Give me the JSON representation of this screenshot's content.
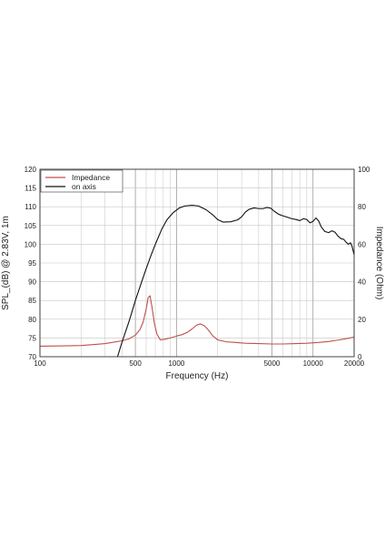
{
  "chart_data": {
    "type": "line",
    "x_scale": "log",
    "xlabel": "Frequency (Hz)",
    "ylabel": "SPL_(dB) @ 2.83V, 1m",
    "y2label": "Impedance (Ohm)",
    "xlim": [
      100,
      20000
    ],
    "ylim": [
      70,
      120
    ],
    "y2lim": [
      0,
      100
    ],
    "x_ticks": [
      100,
      500,
      1000,
      5000,
      10000,
      20000
    ],
    "x_tick_labels": [
      "100",
      "500",
      "1000",
      "5000",
      "10000",
      "20000"
    ],
    "y_ticks": [
      70,
      75,
      80,
      85,
      90,
      95,
      100,
      105,
      110,
      115,
      120
    ],
    "y_tick_labels": [
      "70",
      "75",
      "80",
      "85",
      "90",
      "95",
      "100",
      "105",
      "110",
      "115",
      "120"
    ],
    "y2_ticks": [
      0,
      20,
      40,
      60,
      80,
      100
    ],
    "y2_tick_labels": [
      "0",
      "20",
      "40",
      "60",
      "80",
      "100"
    ],
    "grid": true,
    "legend_position": "top-left",
    "series": [
      {
        "name": "Impedance",
        "axis": "right",
        "color": "#c0504d",
        "points": [
          [
            100,
            5.6
          ],
          [
            150,
            5.8
          ],
          [
            200,
            6.0
          ],
          [
            250,
            6.5
          ],
          [
            300,
            7.0
          ],
          [
            350,
            7.8
          ],
          [
            400,
            8.5
          ],
          [
            450,
            9.6
          ],
          [
            500,
            11.5
          ],
          [
            540,
            14.5
          ],
          [
            570,
            18.5
          ],
          [
            600,
            25.5
          ],
          [
            620,
            31.5
          ],
          [
            640,
            32.5
          ],
          [
            660,
            27.0
          ],
          [
            690,
            17.5
          ],
          [
            720,
            12.0
          ],
          [
            760,
            9.0
          ],
          [
            820,
            9.3
          ],
          [
            900,
            10.0
          ],
          [
            1000,
            11.0
          ],
          [
            1100,
            11.8
          ],
          [
            1200,
            13.0
          ],
          [
            1300,
            14.8
          ],
          [
            1400,
            16.8
          ],
          [
            1500,
            17.5
          ],
          [
            1600,
            16.5
          ],
          [
            1700,
            14.5
          ],
          [
            1850,
            11.0
          ],
          [
            2000,
            9.0
          ],
          [
            2300,
            8.0
          ],
          [
            2700,
            7.6
          ],
          [
            3200,
            7.2
          ],
          [
            4000,
            7.0
          ],
          [
            5000,
            6.8
          ],
          [
            6000,
            6.8
          ],
          [
            7500,
            7.0
          ],
          [
            9000,
            7.2
          ],
          [
            11000,
            7.6
          ],
          [
            13000,
            8.1
          ],
          [
            15000,
            8.8
          ],
          [
            17500,
            9.6
          ],
          [
            20000,
            10.5
          ]
        ]
      },
      {
        "name": "on axis",
        "axis": "left",
        "color": "#111111",
        "points": [
          [
            370,
            70
          ],
          [
            400,
            74
          ],
          [
            450,
            79.5
          ],
          [
            500,
            85
          ],
          [
            550,
            89.5
          ],
          [
            600,
            93.5
          ],
          [
            650,
            97
          ],
          [
            700,
            100
          ],
          [
            780,
            104
          ],
          [
            850,
            106.5
          ],
          [
            950,
            108.5
          ],
          [
            1050,
            109.7
          ],
          [
            1150,
            110.2
          ],
          [
            1300,
            110.4
          ],
          [
            1450,
            110.2
          ],
          [
            1650,
            109.2
          ],
          [
            1850,
            107.8
          ],
          [
            2000,
            106.6
          ],
          [
            2200,
            105.9
          ],
          [
            2500,
            106.0
          ],
          [
            2800,
            106.5
          ],
          [
            3000,
            107.3
          ],
          [
            3200,
            108.6
          ],
          [
            3400,
            109.3
          ],
          [
            3700,
            109.7
          ],
          [
            4000,
            109.5
          ],
          [
            4300,
            109.5
          ],
          [
            4600,
            109.8
          ],
          [
            4900,
            109.6
          ],
          [
            5200,
            108.8
          ],
          [
            5600,
            108.0
          ],
          [
            6000,
            107.6
          ],
          [
            6500,
            107.2
          ],
          [
            7000,
            106.8
          ],
          [
            7500,
            106.6
          ],
          [
            8000,
            106.3
          ],
          [
            8500,
            106.8
          ],
          [
            9000,
            106.6
          ],
          [
            9500,
            105.7
          ],
          [
            10000,
            106.1
          ],
          [
            10500,
            107.0
          ],
          [
            11000,
            106.2
          ],
          [
            11500,
            104.6
          ],
          [
            12200,
            103.4
          ],
          [
            13000,
            103.1
          ],
          [
            13800,
            103.6
          ],
          [
            14500,
            103.2
          ],
          [
            15200,
            102.2
          ],
          [
            16000,
            101.5
          ],
          [
            16800,
            101.3
          ],
          [
            17500,
            100.5
          ],
          [
            18200,
            100.0
          ],
          [
            18800,
            100.4
          ],
          [
            19300,
            99.5
          ],
          [
            20000,
            97.2
          ]
        ]
      }
    ]
  }
}
